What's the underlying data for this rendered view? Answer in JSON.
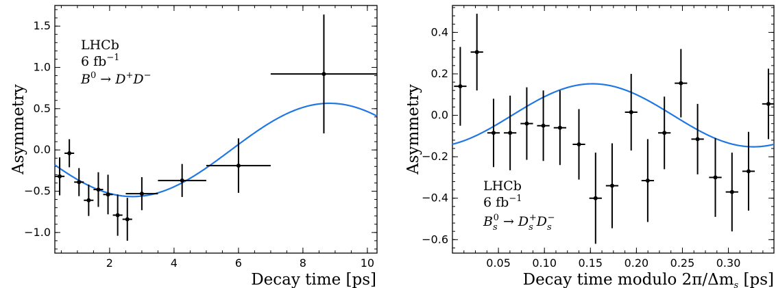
{
  "chart_data": [
    {
      "type": "scatter",
      "xlabel": "Decay time [ps]",
      "ylabel": "Asymmetry",
      "xlim": [
        0.3,
        10.3
      ],
      "ylim": [
        -1.25,
        1.75
      ],
      "xticks": [
        2,
        4,
        6,
        8,
        10
      ],
      "yticks": [
        -1.0,
        -0.5,
        0.0,
        0.5,
        1.0,
        1.5
      ],
      "xtick_labels": [
        "2",
        "4",
        "6",
        "8",
        "10"
      ],
      "ytick_labels": [
        "−1.0",
        "−0.5",
        "0.0",
        "0.5",
        "1.0",
        "1.5"
      ],
      "annotation": {
        "experiment": "LHCb",
        "lumi": "6 fb",
        "lumi_exp": "−1",
        "decay": {
          "parent": "B",
          "parent_sup": "0",
          "arrow": " → ",
          "d1": "D",
          "d1_sup": "+",
          "d2": "D",
          "d2_sup": "−"
        }
      },
      "points": [
        {
          "x": 0.45,
          "y": -0.32,
          "xerr": 0.15,
          "yerr": 0.23
        },
        {
          "x": 0.75,
          "y": -0.04,
          "xerr": 0.15,
          "yerr": 0.17
        },
        {
          "x": 1.05,
          "y": -0.39,
          "xerr": 0.15,
          "yerr": 0.17
        },
        {
          "x": 1.35,
          "y": -0.61,
          "xerr": 0.15,
          "yerr": 0.19
        },
        {
          "x": 1.65,
          "y": -0.48,
          "xerr": 0.15,
          "yerr": 0.21
        },
        {
          "x": 1.95,
          "y": -0.54,
          "xerr": 0.15,
          "yerr": 0.24
        },
        {
          "x": 2.25,
          "y": -0.79,
          "xerr": 0.15,
          "yerr": 0.25
        },
        {
          "x": 2.55,
          "y": -0.84,
          "xerr": 0.15,
          "yerr": 0.26
        },
        {
          "x": 3.0,
          "y": -0.53,
          "xerr": 0.5,
          "yerr": 0.2
        },
        {
          "x": 4.25,
          "y": -0.37,
          "xerr": 0.75,
          "yerr": 0.2
        },
        {
          "x": 6.0,
          "y": -0.19,
          "xerr": 1.0,
          "yerr": 0.33
        },
        {
          "x": 8.65,
          "y": 0.92,
          "xerr": 1.65,
          "yerr": 0.72
        }
      ],
      "fit": {
        "model": "A*sin(w*(t - t0))",
        "amplitude": 0.565,
        "omega": 0.5145,
        "t0": 5.77
      }
    },
    {
      "type": "scatter",
      "xlabel": "Decay time modulo 2π/Δm",
      "xlabel_sub": "s",
      "xlabel_unit": " [ps]",
      "ylabel": "Asymmetry",
      "xlim": [
        0.0,
        0.3495
      ],
      "ylim": [
        -0.665,
        0.53
      ],
      "xticks": [
        0.05,
        0.1,
        0.15,
        0.2,
        0.25,
        0.3
      ],
      "yticks": [
        -0.6,
        -0.4,
        -0.2,
        0.0,
        0.2,
        0.4
      ],
      "xtick_labels": [
        "0.05",
        "0.10",
        "0.15",
        "0.20",
        "0.25",
        "0.30"
      ],
      "ytick_labels": [
        "−0.6",
        "−0.4",
        "−0.2",
        "0.0",
        "0.2",
        "0.4"
      ],
      "annotation": {
        "experiment": "LHCb",
        "lumi": "6 fb",
        "lumi_exp": "−1",
        "decay": {
          "parent": "B",
          "parent_sub": "s",
          "parent_sup": "0",
          "arrow": " → ",
          "d1": "D",
          "d1_sub": "s",
          "d1_sup": "+",
          "d2": "D",
          "d2_sub": "s",
          "d2_sup": "−"
        }
      },
      "points": [
        {
          "x": 0.0085,
          "y": 0.14,
          "xerr": 0.0068,
          "yerr": 0.19
        },
        {
          "x": 0.0266,
          "y": 0.305,
          "xerr": 0.0068,
          "yerr": 0.185
        },
        {
          "x": 0.0447,
          "y": -0.085,
          "xerr": 0.0068,
          "yerr": 0.165
        },
        {
          "x": 0.0627,
          "y": -0.085,
          "xerr": 0.0068,
          "yerr": 0.18
        },
        {
          "x": 0.0808,
          "y": -0.04,
          "xerr": 0.0068,
          "yerr": 0.175
        },
        {
          "x": 0.0988,
          "y": -0.05,
          "xerr": 0.0068,
          "yerr": 0.17
        },
        {
          "x": 0.1169,
          "y": -0.06,
          "xerr": 0.0068,
          "yerr": 0.18
        },
        {
          "x": 0.1375,
          "y": -0.14,
          "xerr": 0.0068,
          "yerr": 0.17
        },
        {
          "x": 0.1556,
          "y": -0.4,
          "xerr": 0.0068,
          "yerr": 0.22
        },
        {
          "x": 0.1736,
          "y": -0.34,
          "xerr": 0.0068,
          "yerr": 0.205
        },
        {
          "x": 0.1943,
          "y": 0.015,
          "xerr": 0.0068,
          "yerr": 0.185
        },
        {
          "x": 0.2123,
          "y": -0.315,
          "xerr": 0.0068,
          "yerr": 0.2
        },
        {
          "x": 0.2304,
          "y": -0.085,
          "xerr": 0.0068,
          "yerr": 0.175
        },
        {
          "x": 0.2484,
          "y": 0.155,
          "xerr": 0.0068,
          "yerr": 0.165
        },
        {
          "x": 0.2665,
          "y": -0.115,
          "xerr": 0.0068,
          "yerr": 0.17
        },
        {
          "x": 0.2858,
          "y": -0.3,
          "xerr": 0.0068,
          "yerr": 0.19
        },
        {
          "x": 0.3039,
          "y": -0.37,
          "xerr": 0.0068,
          "yerr": 0.19
        },
        {
          "x": 0.3219,
          "y": -0.27,
          "xerr": 0.0068,
          "yerr": 0.19
        },
        {
          "x": 0.3435,
          "y": 0.055,
          "xerr": 0.0068,
          "yerr": 0.17
        }
      ],
      "fit": {
        "model": "A*sin(w*(t - t0))",
        "amplitude": 0.152,
        "omega": 17.95,
        "t0": 0.0648
      }
    }
  ]
}
